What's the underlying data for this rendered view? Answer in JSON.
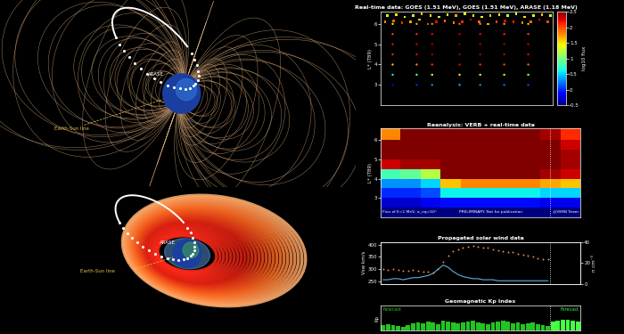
{
  "diagram": {
    "top_view": {
      "satellite": "ARASE",
      "line_label": "Earth-Sun line"
    },
    "bottom_view": {
      "satellite": "ARASE",
      "line_label": "Earth-Sun line"
    }
  },
  "chart_data": [
    {
      "type": "scatter",
      "title": "Real-time data: GOES (1.51 MeV), GOES (1.51 MeV), ARASE (1.18 MeV)",
      "y_label": "L* (T89)",
      "xlim": [
        0,
        10
      ],
      "xticks": [],
      "ylim": [
        2,
        6.6
      ],
      "yticks": [
        3,
        4,
        5,
        6
      ],
      "tick_labels": "y",
      "colorbar": {
        "label": "log10 flux",
        "range": [
          -0.5,
          2.5
        ],
        "ticks": [
          -0.5,
          0,
          0.5,
          1,
          1.5,
          2,
          2.5
        ]
      },
      "series": [
        {
          "marker": "square",
          "x": [
            0.25,
            0.75,
            1.25,
            1.75,
            2.25,
            2.75,
            3.25,
            3.75,
            4.25,
            4.75,
            5.25,
            5.75,
            6.25,
            6.75,
            7.25,
            7.75,
            8.25,
            8.75,
            9.25,
            9.75
          ],
          "y": [
            6.1,
            6.15,
            6.05,
            6.1,
            6.2,
            6.0,
            6.1,
            6.15,
            6.05,
            6.1,
            6.2,
            6.1,
            6.0,
            6.1,
            6.15,
            6.1,
            6.05,
            6.1,
            6.2,
            6.1
          ],
          "flux": [
            1.8,
            1.9,
            2.1,
            1.7,
            1.6,
            2.0,
            2.2,
            1.9,
            1.8,
            2.1,
            2.3,
            1.9,
            1.7,
            2.0,
            2.2,
            2.1,
            1.8,
            1.9,
            2.2,
            2.0
          ]
        },
        {
          "marker": "square",
          "x": [
            0.4,
            0.9,
            1.4,
            1.9,
            2.4,
            2.9,
            3.4,
            3.9,
            4.4,
            4.9,
            5.4,
            5.9,
            6.4,
            6.9,
            7.4,
            7.9,
            8.4,
            8.9,
            9.4,
            9.9
          ],
          "y": [
            6.4,
            6.45,
            6.35,
            6.4,
            6.5,
            6.4,
            6.35,
            6.45,
            6.4,
            6.5,
            6.4,
            6.35,
            6.4,
            6.45,
            6.4,
            6.5,
            6.35,
            6.4,
            6.45,
            6.4
          ],
          "flux": [
            1.3,
            1.5,
            1.4,
            1.2,
            1.6,
            1.5,
            1.3,
            1.4,
            1.7,
            1.5,
            1.3,
            1.4,
            1.6,
            1.5,
            1.2,
            1.4,
            1.5,
            1.3,
            1.6,
            1.4
          ]
        },
        {
          "marker": "circle",
          "x": [
            0.7,
            0.7,
            0.7,
            0.7,
            0.7,
            0.7,
            0.7,
            2.1,
            2.1,
            2.1,
            2.1,
            2.1,
            2.1,
            2.1,
            3.0,
            3.0,
            3.0,
            3.0,
            3.0,
            3.0,
            3.0,
            4.6,
            4.6,
            4.6,
            4.6,
            4.6,
            4.6,
            4.6,
            5.8,
            5.8,
            5.8,
            5.8,
            5.8,
            5.8,
            5.8,
            7.2,
            7.2,
            7.2,
            7.2,
            7.2,
            7.2,
            7.2,
            8.6,
            8.6,
            8.6,
            8.6,
            8.6,
            8.6,
            8.6
          ],
          "y": [
            6.0,
            5.5,
            5.0,
            4.5,
            4.0,
            3.5,
            3.0,
            6.0,
            5.5,
            5.0,
            4.5,
            4.0,
            3.5,
            3.0,
            6.0,
            5.5,
            5.0,
            4.5,
            4.0,
            3.5,
            3.0,
            6.0,
            5.5,
            5.0,
            4.5,
            4.0,
            3.5,
            3.0,
            6.0,
            5.5,
            5.0,
            4.5,
            4.0,
            3.5,
            3.0,
            6.0,
            5.5,
            5.0,
            4.5,
            4.0,
            3.5,
            3.0,
            6.0,
            5.5,
            5.0,
            4.5,
            4.0,
            3.5,
            3.0
          ],
          "flux": [
            1.5,
            2.0,
            2.2,
            2.1,
            1.6,
            0.6,
            -0.2,
            1.7,
            2.1,
            2.3,
            2.2,
            1.8,
            0.9,
            0.0,
            1.8,
            2.2,
            2.4,
            2.4,
            2.1,
            1.4,
            0.3,
            1.9,
            2.3,
            2.5,
            2.4,
            2.2,
            1.5,
            0.4,
            1.8,
            2.2,
            2.4,
            2.4,
            2.1,
            1.4,
            0.3,
            1.7,
            2.1,
            2.4,
            2.3,
            2.0,
            1.3,
            0.2,
            1.6,
            2.0,
            2.3,
            2.2,
            1.9,
            1.2,
            0.1
          ]
        }
      ]
    },
    {
      "type": "heatmap",
      "title": "Reanalysis: VERB + real-time data",
      "y_label": "L* (T89)",
      "xlim": [
        0,
        10
      ],
      "xticks": [],
      "ylim": [
        2,
        6.6
      ],
      "yticks": [
        3,
        4,
        5,
        6
      ],
      "tick_labels": "y",
      "now": 8.5,
      "color_range": [
        -0.5,
        2.5
      ],
      "notes": [
        "Flux of E=1 MeV, α_eq=50°",
        "PRELIMINARY. Not for publication",
        "@VERB Team"
      ],
      "x_edges": [
        0,
        1,
        2,
        3,
        4,
        5,
        6,
        7,
        8,
        9,
        10
      ],
      "y_edges": [
        2,
        2.5,
        3,
        3.5,
        4,
        4.5,
        5,
        5.5,
        6,
        6.6
      ],
      "cells": [
        [
          -0.5,
          -0.5,
          -0.5,
          -0.5,
          -0.5,
          -0.5,
          -0.5,
          -0.5,
          -0.5,
          -0.5
        ],
        [
          -0.3,
          -0.3,
          -0.2,
          -0.1,
          -0.1,
          -0.1,
          -0.1,
          -0.1,
          -0.2,
          -0.2
        ],
        [
          0.0,
          0.0,
          0.1,
          0.6,
          0.6,
          0.6,
          0.6,
          0.6,
          0.5,
          0.5
        ],
        [
          0.3,
          0.3,
          0.5,
          1.6,
          1.8,
          1.8,
          1.8,
          1.8,
          1.7,
          1.6
        ],
        [
          0.8,
          0.9,
          1.2,
          2.5,
          2.5,
          2.5,
          2.5,
          2.5,
          2.4,
          2.3
        ],
        [
          2.3,
          2.4,
          2.4,
          2.5,
          2.5,
          2.5,
          2.5,
          2.5,
          2.5,
          2.4
        ],
        [
          2.5,
          2.5,
          2.5,
          2.5,
          2.5,
          2.5,
          2.5,
          2.5,
          2.5,
          2.4
        ],
        [
          2.5,
          2.5,
          2.5,
          2.5,
          2.5,
          2.5,
          2.5,
          2.5,
          2.5,
          2.3
        ],
        [
          1.8,
          2.5,
          2.5,
          2.5,
          2.5,
          2.5,
          2.5,
          2.5,
          2.4,
          2.1
        ]
      ]
    },
    {
      "type": "scatter",
      "title": "Propagated solar wind data",
      "y_label": "Vsw km/s",
      "y2_label": "n cm⁻³",
      "xlim": [
        0,
        10
      ],
      "xticks": [],
      "ylim": [
        240,
        410
      ],
      "yticks": [
        250,
        300,
        350,
        400
      ],
      "y2lim": [
        0,
        40
      ],
      "y2ticks": [
        0,
        20,
        40
      ],
      "tick_labels": "y",
      "now": 8.5,
      "x": [
        0.125,
        0.375,
        0.625,
        0.875,
        1.125,
        1.375,
        1.625,
        1.875,
        2.125,
        2.375,
        2.625,
        2.875,
        3.125,
        3.375,
        3.625,
        3.875,
        4.125,
        4.375,
        4.625,
        4.875,
        5.125,
        5.375,
        5.625,
        5.875,
        6.125,
        6.375,
        6.625,
        6.875,
        7.125,
        7.375,
        7.625,
        7.875,
        8.125,
        8.375
      ],
      "series": [
        {
          "type": "scatter",
          "color": "#f08a40",
          "marker": "circle",
          "values": [
            300,
            298,
            302,
            297,
            295,
            293,
            296,
            292,
            290,
            291,
            288,
            300,
            330,
            355,
            372,
            380,
            388,
            392,
            395,
            390,
            386,
            388,
            382,
            378,
            375,
            370,
            368,
            362,
            358,
            355,
            350,
            346,
            342,
            340
          ]
        },
        {
          "type": "line",
          "color": "#60b0e0",
          "axis": "y2",
          "line_style": "solid",
          "values": [
            4,
            4,
            5,
            5,
            4,
            5,
            6,
            6,
            7,
            8,
            10,
            14,
            18,
            16,
            12,
            9,
            7,
            6,
            5,
            5,
            4,
            4,
            4,
            3,
            3,
            3,
            3,
            3,
            3,
            3,
            3,
            3,
            3,
            3
          ]
        }
      ]
    },
    {
      "type": "bar",
      "title": "Geomagnetic Kp Index",
      "y_label": "Kp",
      "xlim": [
        0,
        10
      ],
      "xticks": [],
      "ylim": [
        0,
        9
      ],
      "yticks": [],
      "tick_labels": false,
      "now": 8.5,
      "series": [
        {
          "name": "Nowcast",
          "color": "#22c322",
          "x": [
            0.125,
            0.375,
            0.625,
            0.875,
            1.125,
            1.375,
            1.625,
            1.875,
            2.125,
            2.375,
            2.625,
            2.875,
            3.125,
            3.375,
            3.625,
            3.875,
            4.125,
            4.375,
            4.625,
            4.875,
            5.125,
            5.375,
            5.625,
            5.875,
            6.125,
            6.375,
            6.625,
            6.875,
            7.125,
            7.375,
            7.625,
            7.875,
            8.125,
            8.375
          ],
          "values": [
            2,
            2.3,
            2,
            1.7,
            1.3,
            2,
            2.7,
            3,
            2.7,
            3.3,
            3,
            2.3,
            3.7,
            3.3,
            3,
            2.7,
            3,
            3.3,
            3.7,
            3,
            2.7,
            2.3,
            3,
            3.3,
            3.7,
            3.3,
            2.7,
            3,
            2.3,
            2.7,
            3,
            2.3,
            2,
            1.7
          ]
        },
        {
          "name": "Forecast",
          "color": "#44ff44",
          "x": [
            8.625,
            8.875,
            9.125,
            9.375,
            9.625,
            9.875
          ],
          "values": [
            3.3,
            3.7,
            4,
            4,
            3.7,
            3.3
          ]
        }
      ]
    }
  ]
}
